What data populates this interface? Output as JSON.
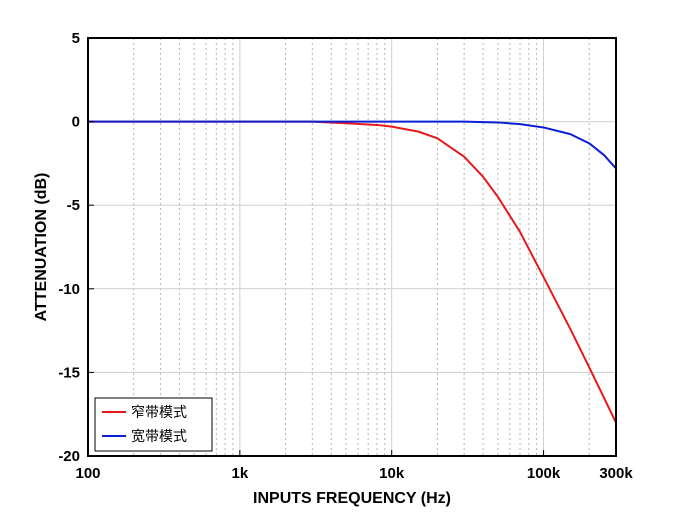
{
  "chart_data": {
    "type": "line",
    "xscale": "log",
    "xlim": [
      100,
      300000
    ],
    "ylim": [
      -20,
      5
    ],
    "xlabel": "INPUTS FREQUENCY (Hz)",
    "ylabel": "ATTENUATION (dB)",
    "x_ticks": [
      100,
      1000,
      10000,
      100000,
      300000
    ],
    "x_tick_labels": [
      "100",
      "1k",
      "10k",
      "100k",
      "300k"
    ],
    "y_ticks": [
      5,
      0,
      -5,
      -10,
      -15,
      -20
    ],
    "y_tick_labels": [
      "5",
      "0",
      "-5",
      "-10",
      "-15",
      "-20"
    ],
    "grid": true,
    "legend_position": "bottom-left",
    "series": [
      {
        "name": "窄带模式",
        "color": "#e8191c",
        "x": [
          100,
          1000,
          3000,
          5000,
          8000,
          10000,
          15000,
          20000,
          30000,
          40000,
          50000,
          70000,
          100000,
          150000,
          200000,
          300000
        ],
        "y": [
          0,
          0,
          0,
          -0.1,
          -0.2,
          -0.3,
          -0.6,
          -1.0,
          -2.1,
          -3.3,
          -4.5,
          -6.6,
          -9.3,
          -12.4,
          -14.7,
          -18.0
        ]
      },
      {
        "name": "宽带模式",
        "color": "#0a1fd6",
        "x": [
          100,
          1000,
          10000,
          30000,
          50000,
          70000,
          100000,
          150000,
          200000,
          250000,
          300000
        ],
        "y": [
          0,
          0,
          0,
          0,
          -0.05,
          -0.15,
          -0.35,
          -0.75,
          -1.3,
          -2.0,
          -2.8
        ]
      }
    ]
  }
}
